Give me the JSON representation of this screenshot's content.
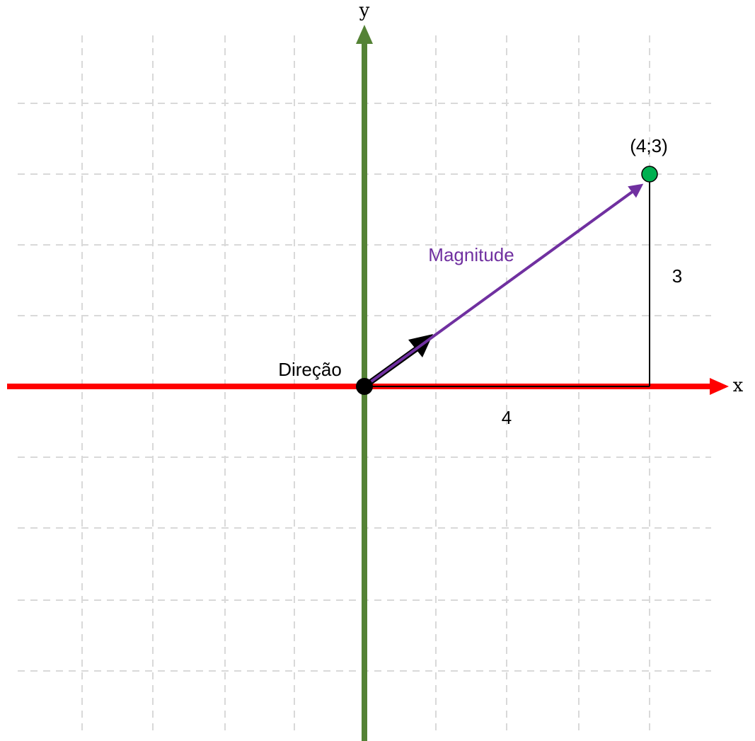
{
  "axes": {
    "x_label": "x",
    "y_label": "y"
  },
  "point": {
    "label": "(4;3)"
  },
  "vector": {
    "magnitude_label": "Magnitude",
    "direction_label": "Direção"
  },
  "components": {
    "horizontal": "4",
    "vertical": "3"
  }
}
